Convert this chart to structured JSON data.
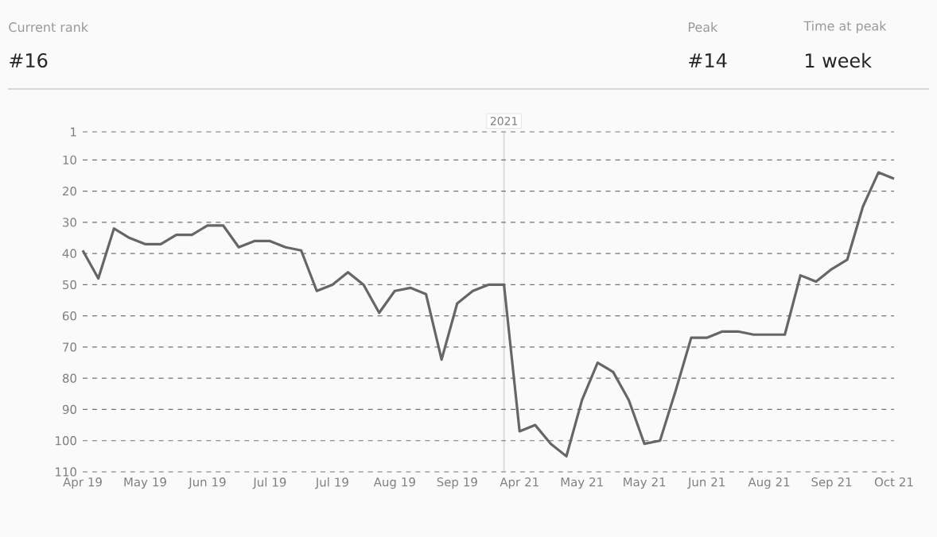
{
  "chart_data": {
    "type": "line",
    "categories": [
      "Apr 19",
      null,
      null,
      null,
      "May 19",
      null,
      null,
      null,
      "Jun 19",
      null,
      null,
      null,
      "Jul 19",
      null,
      null,
      null,
      "Jul 19",
      null,
      null,
      null,
      "Aug 19",
      null,
      null,
      null,
      "Sep 19",
      null,
      null,
      null,
      "Apr 21",
      null,
      null,
      null,
      "May 21",
      null,
      null,
      null,
      "May 21",
      null,
      null,
      null,
      "Jun 21",
      null,
      null,
      null,
      "Aug 21",
      null,
      null,
      null,
      "Sep 21",
      null,
      null,
      null,
      "Oct 21"
    ],
    "series": [
      {
        "color": "#666666",
        "values": [
          39,
          48,
          32,
          35,
          37,
          37,
          34,
          34,
          31,
          31,
          38,
          36,
          36,
          38,
          39,
          52,
          50,
          46,
          50,
          59,
          52,
          51,
          53,
          74,
          56,
          52,
          50,
          50,
          97,
          95,
          101,
          105,
          87,
          75,
          78,
          87,
          101,
          100,
          84,
          67,
          67,
          65,
          65,
          66,
          66,
          66,
          47,
          49,
          45,
          42,
          25,
          14,
          16
        ]
      }
    ],
    "ylim": [
      110,
      1
    ],
    "yticks": [
      1,
      10,
      20,
      30,
      40,
      50,
      60,
      70,
      80,
      90,
      100,
      110
    ],
    "grid": "y",
    "line_style": "solid",
    "annotations": [
      "Current rank",
      "#16",
      "Peak",
      "#14",
      "Time at peak",
      "1 week",
      "2021"
    ]
  }
}
